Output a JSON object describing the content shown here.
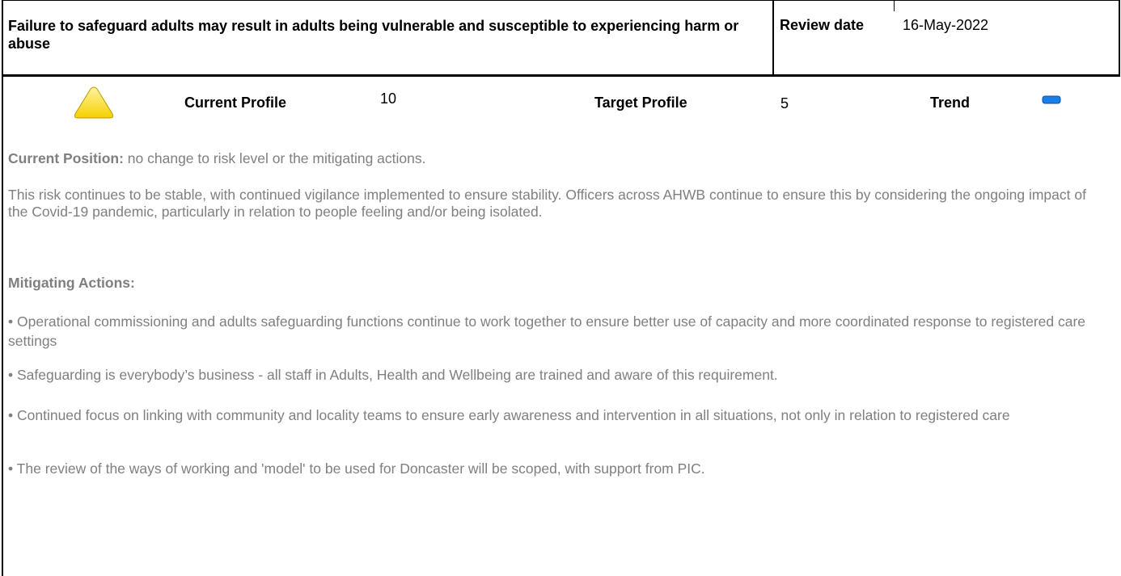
{
  "header": {
    "title": "Failure to safeguard adults may result in adults being vulnerable and susceptible to  experiencing harm or abuse",
    "review_date_label": "Review date",
    "review_date": "16-May-2022"
  },
  "profile": {
    "current_label": "Current Profile",
    "current_value": 10,
    "target_label": "Target Profile",
    "target_value": 5,
    "trend_label": "Trend"
  },
  "body": {
    "current_position_label": "Current Position:",
    "current_position_text": "no change to risk level or the mitigating actions.",
    "paragraph": "This risk continues to be stable, with continued vigilance implemented to ensure stability. Officers across AHWB continue to ensure this by considering the ongoing impact of the Covid-19 pandemic, particularly in relation to people feeling and/or being isolated.",
    "mitigating_label": "Mitigating Actions:",
    "bullets": [
      "• Operational commissioning and adults safeguarding functions continue to work together to ensure better use of capacity and more coordinated response to registered care settings",
      "• Safeguarding is everybody’s business - all staff in Adults, Health and Wellbeing are trained and aware of this requirement.",
      "• Continued focus on linking with community and locality teams to ensure early awareness and intervention in all situations, not only in relation to registered care",
      "• The review of the ways of working and 'model' to be used for Doncaster will be scoped, with support from PIC."
    ]
  }
}
